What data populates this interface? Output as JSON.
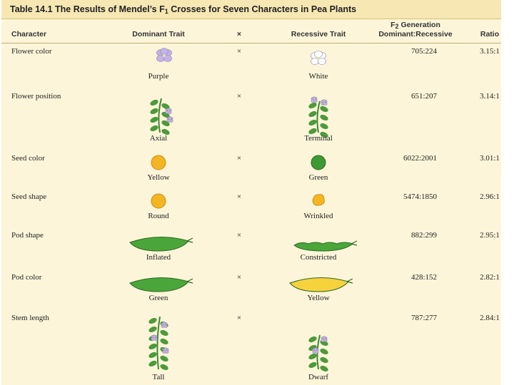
{
  "title": {
    "label": "Table 14.1",
    "before": "The Results of Mendel’s F",
    "sub": "1",
    "after": "Crosses for Seven Characters in Pea Plants"
  },
  "table": {
    "headers": {
      "character": "Character",
      "dominant": "Dominant Trait",
      "cross": "×",
      "recessive": "Recessive Trait",
      "f2": {
        "letter": "F",
        "sub": "2",
        "text": "Generation"
      },
      "counts": "Dominant:Recessive",
      "ratio": "Ratio"
    },
    "rows": [
      {
        "character": "Flower color",
        "dominant": "Purple",
        "cross": "×",
        "recessive": "White",
        "counts": "705:224",
        "ratio": "3.15:1"
      },
      {
        "character": "Flower position",
        "dominant": "Axial",
        "cross": "×",
        "recessive": "Terminal",
        "counts": "651:207",
        "ratio": "3.14:1"
      },
      {
        "character": "Seed color",
        "dominant": "Yellow",
        "cross": "×",
        "recessive": "Green",
        "counts": "6022:2001",
        "ratio": "3.01:1"
      },
      {
        "character": "Seed shape",
        "dominant": "Round",
        "cross": "×",
        "recessive": "Wrinkled",
        "counts": "5474:1850",
        "ratio": "2.96:1"
      },
      {
        "character": "Pod shape",
        "dominant": "Inflated",
        "cross": "×",
        "recessive": "Constricted",
        "counts": "882:299",
        "ratio": "2.95:1"
      },
      {
        "character": "Pod color",
        "dominant": "Green",
        "cross": "×",
        "recessive": "Yellow",
        "counts": "428:152",
        "ratio": "2.82:1"
      },
      {
        "character": "Stem length",
        "dominant": "Tall",
        "cross": "×",
        "recessive": "Dwarf",
        "counts": "787:277",
        "ratio": "2.84:1"
      }
    ]
  }
}
